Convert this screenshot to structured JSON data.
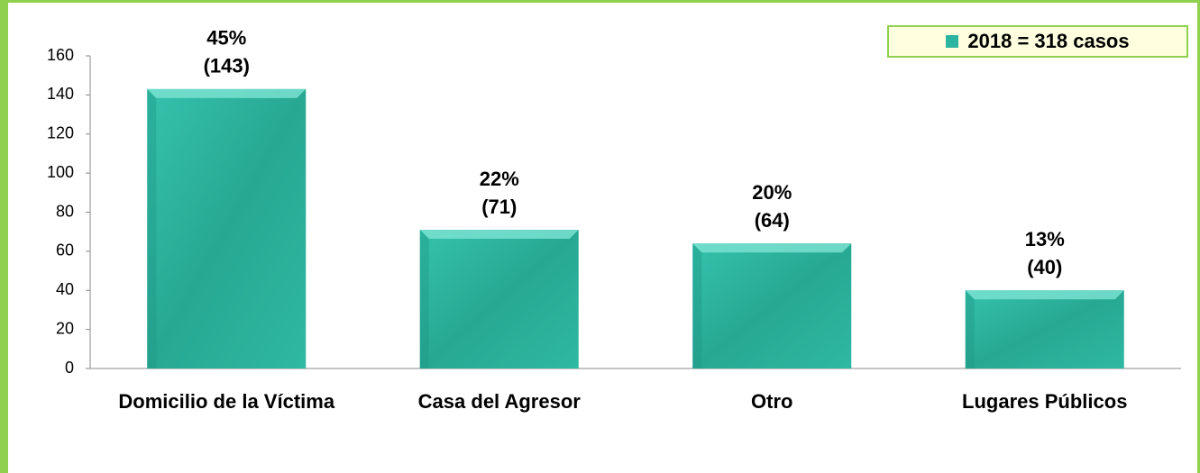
{
  "chart_data": {
    "type": "bar",
    "categories": [
      "Domicilio de la Víctima",
      "Casa del Agresor",
      "Otro",
      "Lugares Públicos"
    ],
    "series": [
      {
        "name": "2018 =  318 casos",
        "color": "#2bb5a0",
        "values": [
          143,
          71,
          64,
          40
        ]
      }
    ],
    "value_labels": [
      [
        "45%",
        "(143)"
      ],
      [
        "22%",
        "(71)"
      ],
      [
        "20%",
        "(64)"
      ],
      [
        "13%",
        "(40)"
      ]
    ],
    "ylim": [
      0,
      160
    ],
    "yticks": [
      0,
      20,
      40,
      60,
      80,
      100,
      120,
      140,
      160
    ],
    "grid": false,
    "legend": "top-right"
  }
}
